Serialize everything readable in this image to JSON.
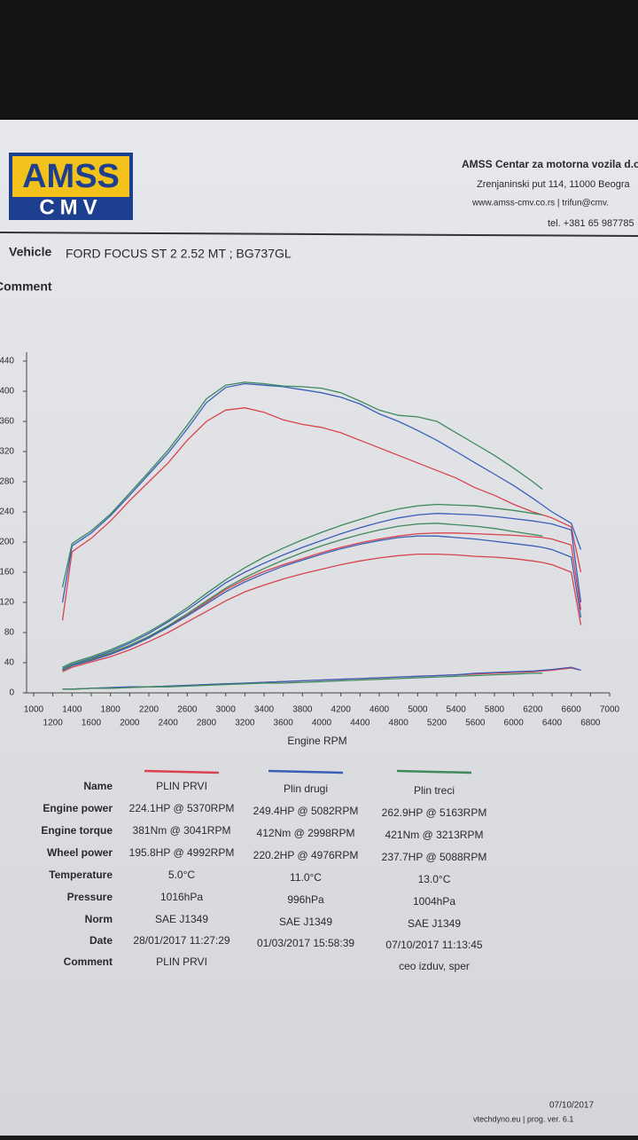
{
  "header": {
    "logo_top": "AMSS",
    "logo_bottom": "CMV",
    "company": "AMSS Centar za motorna vozila d.o.",
    "address": "Zrenjaninski put 114, 11000 Beogra",
    "web": "www.amss-cmv.co.rs  | trifun@cmv.",
    "phone": "tel. +381 65 987785"
  },
  "vehicle": {
    "label": "Vehicle",
    "value": "FORD FOCUS ST 2 2.52 MT ; BG737GL"
  },
  "comment_label": "Comment",
  "chart_data": {
    "type": "line",
    "xlabel": "Engine RPM",
    "x": [
      1300,
      1400,
      1600,
      1800,
      2000,
      2200,
      2400,
      2600,
      2800,
      3000,
      3200,
      3400,
      3600,
      3800,
      4000,
      4200,
      4400,
      4600,
      4800,
      5000,
      5200,
      5400,
      5600,
      5800,
      6000,
      6200,
      6300,
      6400,
      6600,
      6700
    ],
    "series": [
      {
        "color": "#d9434f",
        "values": [
          96,
          187,
          205,
          228,
          255,
          280,
          305,
          335,
          360,
          375,
          378,
          372,
          362,
          356,
          352,
          345,
          335,
          325,
          315,
          305,
          295,
          285,
          272,
          262,
          250,
          240,
          236,
          232,
          220,
          160
        ]
      },
      {
        "color": "#3a5fb8",
        "values": [
          120,
          195,
          212,
          235,
          262,
          290,
          318,
          350,
          385,
          405,
          410,
          408,
          406,
          402,
          398,
          392,
          383,
          370,
          360,
          348,
          335,
          320,
          305,
          290,
          275,
          258,
          249,
          240,
          225,
          190
        ]
      },
      {
        "color": "#3e8a5c",
        "values": [
          140,
          198,
          215,
          237,
          265,
          293,
          322,
          355,
          390,
          408,
          412,
          410,
          407,
          406,
          404,
          398,
          387,
          375,
          368,
          366,
          360,
          345,
          330,
          315,
          298,
          280,
          270,
          null,
          null,
          null
        ]
      },
      {
        "color": "#d9434f",
        "values": [
          30,
          36,
          44,
          52,
          62,
          74,
          88,
          103,
          120,
          137,
          150,
          161,
          170,
          178,
          186,
          193,
          199,
          204,
          208,
          211,
          212,
          212,
          211,
          210,
          209,
          207,
          206,
          204,
          196,
          110
        ]
      },
      {
        "color": "#3a5fb8",
        "values": [
          32,
          38,
          46,
          55,
          66,
          79,
          94,
          110,
          128,
          146,
          160,
          172,
          183,
          193,
          202,
          211,
          219,
          226,
          232,
          236,
          238,
          237,
          236,
          234,
          231,
          228,
          226,
          224,
          216,
          120
        ]
      },
      {
        "color": "#3e8a5c",
        "values": [
          34,
          40,
          48,
          57,
          68,
          81,
          96,
          113,
          132,
          150,
          166,
          180,
          192,
          203,
          213,
          222,
          230,
          238,
          244,
          248,
          250,
          249,
          248,
          245,
          242,
          238,
          236,
          null,
          null,
          null
        ]
      },
      {
        "color": "#d9434f",
        "values": [
          28,
          34,
          41,
          48,
          57,
          68,
          80,
          94,
          108,
          122,
          134,
          143,
          151,
          158,
          164,
          170,
          175,
          179,
          182,
          184,
          184,
          183,
          181,
          180,
          178,
          175,
          173,
          170,
          160,
          90
        ]
      },
      {
        "color": "#3a5fb8",
        "values": [
          30,
          36,
          43,
          51,
          61,
          73,
          87,
          102,
          118,
          134,
          147,
          158,
          168,
          176,
          184,
          191,
          197,
          202,
          206,
          208,
          208,
          206,
          204,
          201,
          198,
          195,
          193,
          190,
          180,
          100
        ]
      },
      {
        "color": "#3e8a5c",
        "values": [
          31,
          37,
          45,
          53,
          63,
          75,
          89,
          105,
          122,
          139,
          153,
          165,
          176,
          186,
          195,
          203,
          210,
          216,
          221,
          224,
          225,
          223,
          221,
          218,
          214,
          210,
          208,
          null,
          null,
          null
        ]
      },
      {
        "color": "#d9434f",
        "values": [
          5,
          5,
          6,
          7,
          7,
          8,
          9,
          10,
          11,
          12,
          13,
          14,
          15,
          16,
          17,
          18,
          19,
          20,
          21,
          22,
          23,
          24,
          25,
          26,
          27,
          28,
          29,
          30,
          33,
          30
        ]
      },
      {
        "color": "#3a5fb8",
        "values": [
          5,
          5,
          6,
          7,
          8,
          8,
          9,
          10,
          11,
          12,
          13,
          14,
          15,
          16,
          17,
          18,
          19,
          20,
          21,
          22,
          23,
          24,
          26,
          27,
          28,
          29,
          30,
          31,
          34,
          30
        ]
      },
      {
        "color": "#3e8a5c",
        "values": [
          5,
          5,
          6,
          6,
          7,
          8,
          8,
          9,
          10,
          11,
          12,
          13,
          13,
          14,
          15,
          16,
          17,
          18,
          19,
          20,
          21,
          22,
          23,
          24,
          25,
          26,
          26,
          null,
          null,
          null
        ]
      }
    ],
    "xlim": [
      1000,
      7000
    ],
    "xticks": [
      1000,
      1200,
      1400,
      1600,
      1800,
      2000,
      2200,
      2400,
      2600,
      2800,
      3000,
      3200,
      3400,
      3600,
      3800,
      4000,
      4200,
      4400,
      4600,
      4800,
      5000,
      5200,
      5400,
      5600,
      5800,
      6000,
      6200,
      6400,
      6600,
      6800,
      7000
    ],
    "ylim": [
      0,
      440
    ],
    "yticks": [
      0,
      40,
      80,
      120,
      160,
      200,
      240,
      280,
      320,
      360,
      400,
      440
    ],
    "grid": false
  },
  "table": {
    "row_labels": [
      "Name",
      "Engine power",
      "Engine torque",
      "Wheel power",
      "Temperature",
      "Pressure",
      "Norm",
      "Date",
      "Comment"
    ],
    "columns": [
      [
        "PLIN PRVI",
        "224.1HP @ 5370RPM",
        "381Nm @ 3041RPM",
        "195.8HP @ 4992RPM",
        "5.0°C",
        "1016hPa",
        "SAE J1349",
        "28/01/2017 11:27:29",
        "PLIN PRVI"
      ],
      [
        "Plin drugi",
        "249.4HP @ 5082RPM",
        "412Nm @ 2998RPM",
        "220.2HP @ 4976RPM",
        "11.0°C",
        "996hPa",
        "SAE J1349",
        "01/03/2017 15:58:39",
        null
      ],
      [
        "Plin treci",
        "262.9HP @ 5163RPM",
        "421Nm @ 3213RPM",
        "237.7HP @ 5088RPM",
        "13.0°C",
        "1004hPa",
        "SAE J1349",
        "07/10/2017 11:13:45",
        "ceo izduv, sper"
      ]
    ]
  },
  "footer": {
    "date": "07/10/2017",
    "credit": "vtechdyno.eu | prog. ver. 6.1"
  }
}
